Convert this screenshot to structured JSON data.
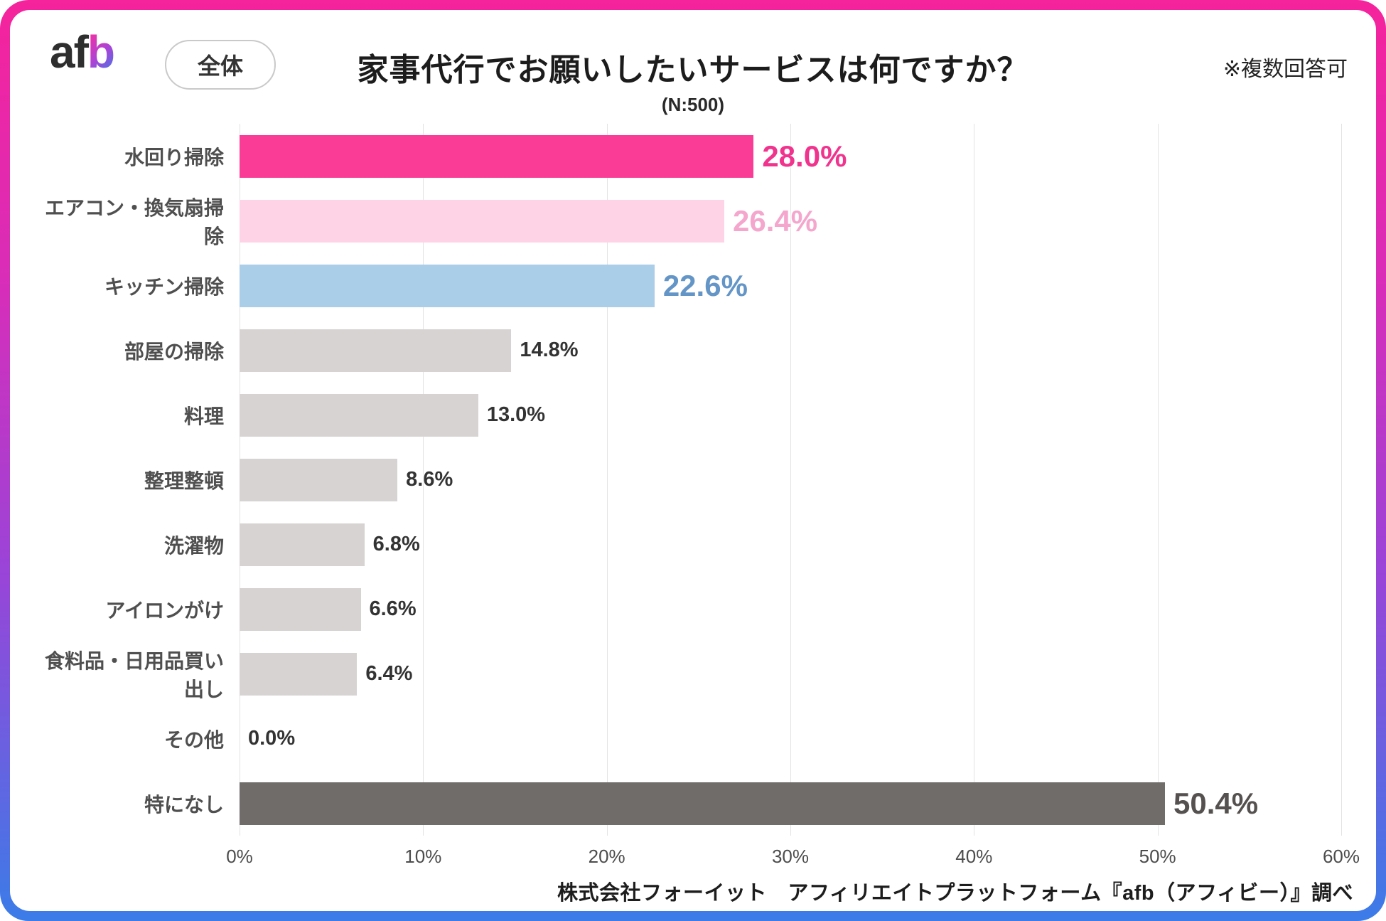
{
  "header": {
    "logo": {
      "part1": "af",
      "part2": "b"
    },
    "scope_button": "全体",
    "title": "家事代行でお願いしたいサービスは何ですか？",
    "note": "※複数回答可",
    "sample_size": "(N:500)"
  },
  "chart_data": {
    "type": "bar",
    "orientation": "horizontal",
    "title": "家事代行でお願いしたいサービスは何ですか？",
    "sample_size": "N:500",
    "categories": [
      "水回り掃除",
      "エアコン・換気扇掃除",
      "キッチン掃除",
      "部屋の掃除",
      "料理",
      "整理整頓",
      "洗濯物",
      "アイロンがけ",
      "食料品・日用品買い出し",
      "その他",
      "特になし"
    ],
    "values": [
      28.0,
      26.4,
      22.6,
      14.8,
      13.0,
      8.6,
      6.8,
      6.6,
      6.4,
      0.0,
      50.4
    ],
    "value_labels": [
      "28.0%",
      "26.4%",
      "22.6%",
      "14.8%",
      "13.0%",
      "8.6%",
      "6.8%",
      "6.6%",
      "6.4%",
      "0.0%",
      "50.4%"
    ],
    "bar_colors": [
      "#fa3c96",
      "#ffd3e6",
      "#aacde8",
      "#d7d3d3",
      "#d7d3d3",
      "#d7d3d3",
      "#d7d3d3",
      "#d7d3d3",
      "#d7d3d3",
      "#d7d3d3",
      "#6f6c69"
    ],
    "value_label_colors": [
      "#f0348e",
      "#f4a6cd",
      "#6495c7",
      "#333333",
      "#333333",
      "#333333",
      "#333333",
      "#333333",
      "#333333",
      "#333333",
      "#555150"
    ],
    "emphasized": [
      true,
      true,
      true,
      false,
      false,
      false,
      false,
      false,
      false,
      false,
      true
    ],
    "xlim": [
      0,
      60
    ],
    "x_ticks": [
      "0%",
      "10%",
      "20%",
      "30%",
      "40%",
      "50%",
      "60%"
    ],
    "grid": true,
    "legend": false
  },
  "footer": {
    "source": "株式会社フォーイット　アフィリエイトプラットフォーム『afb（アフィビー）』調べ"
  },
  "colors": {
    "accent_pink": "#fa3c96",
    "light_pink": "#ffd3e6",
    "light_blue": "#aacde8",
    "gray_bar": "#d7d3d3",
    "dark_bar": "#6f6c69",
    "frame_gradient_top": "#f5239c",
    "frame_gradient_bottom": "#3b7ce8"
  }
}
